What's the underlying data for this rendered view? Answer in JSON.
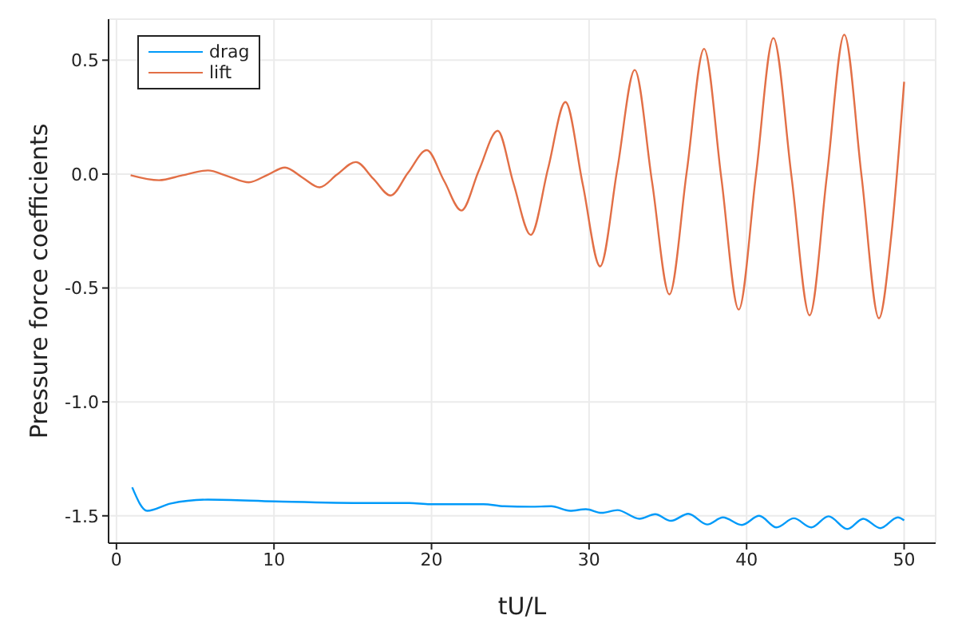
{
  "chart_data": {
    "type": "line",
    "xlabel": "tU/L",
    "ylabel": "Pressure force coefficients",
    "xlim": [
      -0.5,
      52
    ],
    "xticks": [
      0,
      10,
      20,
      30,
      40,
      50
    ],
    "ylim": [
      -1.62,
      0.68
    ],
    "yticks": [
      {
        "value": -1.5,
        "label": "-1.5"
      },
      {
        "value": -1,
        "label": "-1.0"
      },
      {
        "value": -0.5,
        "label": "-0.5"
      },
      {
        "value": 0,
        "label": "0.0"
      },
      {
        "value": 0.5,
        "label": "0.5"
      }
    ],
    "grid": true,
    "legend": "top left",
    "marker": "none",
    "line_style": "solid",
    "series": [
      {
        "name": "drag",
        "color": "#009af9",
        "x": [
          1.0,
          1.95,
          3.45,
          5.8,
          10.1,
          15.9,
          18.6,
          19.9,
          23.3,
          24.6,
          26.3,
          27.6,
          28.8,
          29.8,
          30.8,
          31.8,
          33.2,
          34.2,
          35.2,
          36.3,
          37.5,
          38.5,
          39.7,
          40.8,
          41.9,
          43.0,
          44.1,
          45.2,
          46.4,
          47.4,
          48.5,
          49.6,
          50
        ],
        "values": [
          -1.375,
          -1.478,
          -1.446,
          -1.429,
          -1.437,
          -1.444,
          -1.444,
          -1.449,
          -1.449,
          -1.458,
          -1.46,
          -1.458,
          -1.478,
          -1.471,
          -1.487,
          -1.475,
          -1.513,
          -1.493,
          -1.522,
          -1.491,
          -1.538,
          -1.507,
          -1.54,
          -1.5,
          -1.551,
          -1.511,
          -1.551,
          -1.502,
          -1.558,
          -1.513,
          -1.554,
          -1.507,
          -1.52
        ]
      },
      {
        "name": "lift",
        "color": "#e26f46",
        "x": [
          0.9,
          2.7,
          4.2,
          5.8,
          7.1,
          8.4,
          9.6,
          10.7,
          11.8,
          12.9,
          14.0,
          15.2,
          16.3,
          17.4,
          18.5,
          19.7,
          20.8,
          21.9,
          23.0,
          24.2,
          25.2,
          26.3,
          27.4,
          28.5,
          29.6,
          30.7,
          31.8,
          32.9,
          34.0,
          35.1,
          36.2,
          37.3,
          38.4,
          39.5,
          40.6,
          41.7,
          42.85,
          44.0,
          45.1,
          46.2,
          47.3,
          48.4,
          49.2,
          50
        ],
        "values": [
          -0.005,
          -0.027,
          -0.005,
          0.016,
          -0.01,
          -0.036,
          -0.003,
          0.029,
          -0.015,
          -0.058,
          -0.002,
          0.053,
          -0.02,
          -0.094,
          0.005,
          0.105,
          -0.03,
          -0.16,
          0.015,
          0.19,
          -0.04,
          -0.267,
          0.025,
          0.316,
          -0.045,
          -0.405,
          0.025,
          0.457,
          -0.035,
          -0.528,
          0.01,
          0.55,
          -0.02,
          -0.595,
          0.0,
          0.597,
          -0.01,
          -0.62,
          -0.005,
          0.612,
          -0.01,
          -0.633,
          -0.26,
          0.405
        ]
      }
    ]
  }
}
